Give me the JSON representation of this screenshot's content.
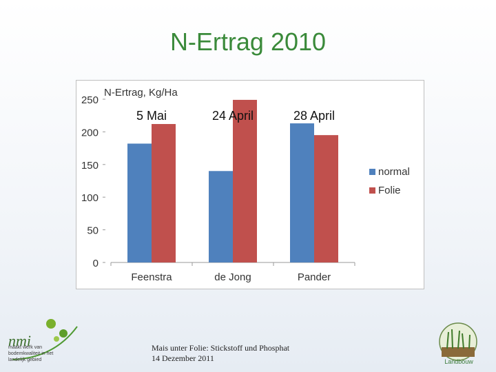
{
  "slide": {
    "title": "N-Ertrag 2010"
  },
  "chart_data": {
    "type": "bar",
    "ylabel": "N-Ertrag, Kg/Ha",
    "ylim": [
      0,
      250
    ],
    "yticks": [
      0,
      50,
      100,
      150,
      200,
      250
    ],
    "categories": [
      "Feenstra",
      "de Jong",
      "Pander"
    ],
    "category_annotations": [
      "5 Mai",
      "24 April",
      "28 April"
    ],
    "series": [
      {
        "name": "normal",
        "color": "#4f81bd",
        "values": [
          182,
          140,
          213
        ]
      },
      {
        "name": "Folie",
        "color": "#c0504d",
        "values": [
          212,
          249,
          195
        ]
      }
    ],
    "legend_position": "right",
    "grid": false
  },
  "footer": {
    "logo": {
      "text": "nmi",
      "tagline_1": "maakt werk van",
      "tagline_2": "bodemkwaliteit in het",
      "tagline_3": "landelijk gebied"
    },
    "note_line_1": "Mais unter Folie: Stickstoff und Phosphat",
    "note_line_2": "14 Dezember 2011",
    "emblem_label": "Landbouw"
  }
}
